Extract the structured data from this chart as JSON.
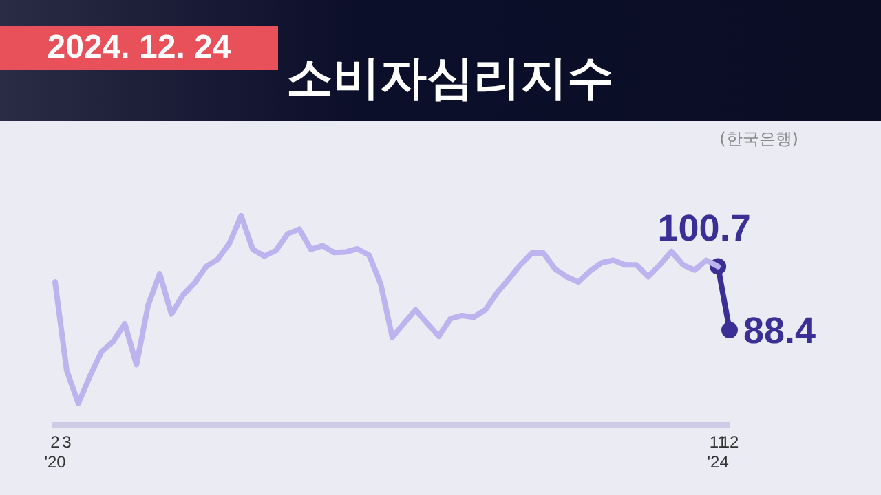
{
  "chart_data": {
    "type": "line",
    "title": "소비자심리지수",
    "subtitle": "2024. 12. 24",
    "annotations": [
      "(한국은행)"
    ],
    "categories": [
      "2\n'20",
      "3",
      null,
      null,
      null,
      null,
      null,
      null,
      null,
      null,
      null,
      null,
      null,
      null,
      null,
      null,
      null,
      null,
      null,
      null,
      null,
      null,
      null,
      null,
      null,
      null,
      null,
      null,
      null,
      null,
      null,
      null,
      null,
      null,
      null,
      null,
      null,
      null,
      null,
      null,
      null,
      null,
      null,
      null,
      null,
      null,
      null,
      null,
      null,
      null,
      null,
      null,
      null,
      null,
      null,
      null,
      null,
      "11\n'24",
      "12"
    ],
    "series": [
      {
        "color": "#bdb3ee",
        "values": [
          97.7,
          80.6,
          74.2,
          79.5,
          84.2,
          86.2,
          89.6,
          81.7,
          93.2,
          99.3,
          91.5,
          95.2,
          97.5,
          100.7,
          102.1,
          105.2,
          110.5,
          104.0,
          102.7,
          103.8,
          107.0,
          107.9,
          104.0,
          104.7,
          103.4,
          103.5,
          104.1,
          102.9,
          97.3,
          87.0,
          89.7,
          92.3,
          89.7,
          87.2,
          90.6,
          91.2,
          90.9,
          92.3,
          95.6,
          98.2,
          101.0,
          103.3,
          103.3,
          100.2,
          98.7,
          97.7,
          99.8,
          101.4,
          101.9,
          101.0,
          101.0,
          98.7,
          101.0,
          103.6,
          101.0,
          100.0,
          101.9,
          100.7,
          null
        ]
      },
      {
        "color": "#3b2f96",
        "marker": "circle",
        "values": [
          null,
          null,
          null,
          null,
          null,
          null,
          null,
          null,
          null,
          null,
          null,
          null,
          null,
          null,
          null,
          null,
          null,
          null,
          null,
          null,
          null,
          null,
          null,
          null,
          null,
          null,
          null,
          null,
          null,
          null,
          null,
          null,
          null,
          null,
          null,
          null,
          null,
          null,
          null,
          null,
          null,
          null,
          null,
          null,
          null,
          null,
          null,
          null,
          null,
          null,
          null,
          null,
          null,
          null,
          null,
          null,
          null,
          100.7,
          88.4
        ],
        "value_labels": [
          null,
          null,
          null,
          null,
          null,
          null,
          null,
          null,
          null,
          null,
          null,
          null,
          null,
          null,
          null,
          null,
          null,
          null,
          null,
          null,
          null,
          null,
          null,
          null,
          null,
          null,
          null,
          null,
          null,
          null,
          null,
          null,
          null,
          null,
          null,
          null,
          null,
          null,
          null,
          null,
          null,
          null,
          null,
          null,
          null,
          null,
          null,
          null,
          null,
          null,
          null,
          null,
          null,
          null,
          null,
          null,
          null,
          "100.7",
          "88.4"
        ]
      }
    ],
    "legend": false
  }
}
